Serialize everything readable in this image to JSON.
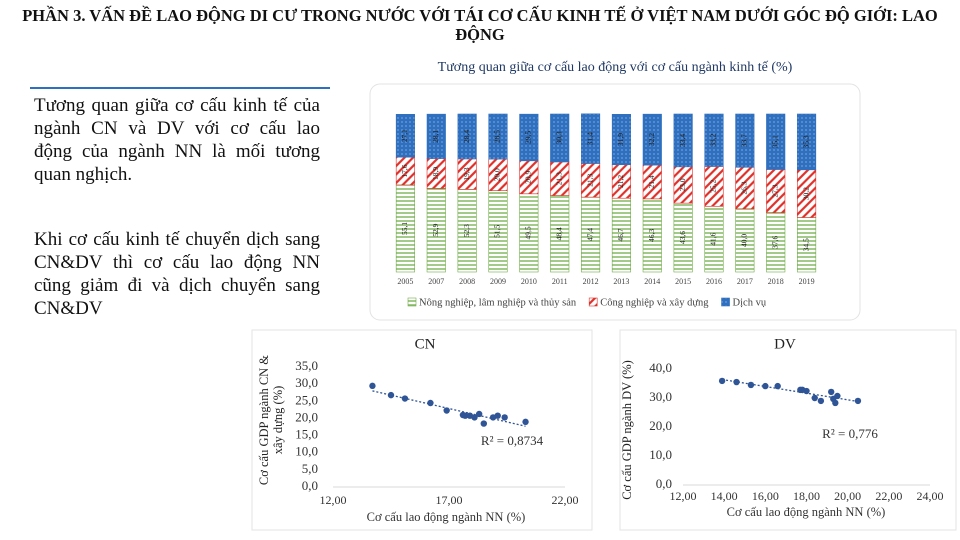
{
  "header": {
    "title": "PHẦN 3. VẤN ĐỀ LAO ĐỘNG DI CƯ TRONG NƯỚC VỚI TÁI CƠ CẤU KINH TẾ Ở VIỆT NAM DƯỚI GÓC ĐỘ GIỚI: LAO ĐỘNG"
  },
  "text": {
    "paragraphs": [
      "Tương quan giữa cơ cấu kinh tế của ngành CN và DV với cơ cấu lao động của ngành NN là mối tương quan nghịch.",
      "Khi cơ cấu kinh tế chuyển dịch sang CN&DV thì cơ cấu lao động NN cũng giảm đi và dịch chuyển sang CN&DV"
    ]
  },
  "chart_data": [
    {
      "type": "bar",
      "stacked": true,
      "title": "Tương quan giữa cơ cấu lao động với cơ cấu ngành kinh tế (%)",
      "categories": [
        "2005",
        "2007",
        "2008",
        "2009",
        "2010",
        "2011",
        "2012",
        "2013",
        "2014",
        "2015",
        "2016",
        "2017",
        "2018",
        "2019"
      ],
      "ylim": [
        0,
        100
      ],
      "series": [
        {
          "name": "Nông nghiệp, lâm nghiệp và thủy sản",
          "color": "#70ad47",
          "hatch": "horizontal",
          "values": [
            55.1,
            52.9,
            52.3,
            51.5,
            49.5,
            48.4,
            47.4,
            46.7,
            46.3,
            43.6,
            41.6,
            40.0,
            37.6,
            34.5
          ],
          "value_labels": [
            "55,1",
            "52,9",
            "52,3",
            "51,5",
            "49,5",
            "48,4",
            "47,4",
            "46,7",
            "46,3",
            "43,6",
            "41,6",
            "40,0",
            "37,6",
            "34,5"
          ]
        },
        {
          "name": "Công nghiệp và xây dựng",
          "color": "#e0302a",
          "hatch": "diagonal",
          "values": [
            17.6,
            18.9,
            19.3,
            20.0,
            20.9,
            21.3,
            21.3,
            21.2,
            21.4,
            23.0,
            25.2,
            26.3,
            27.3,
            30.2
          ],
          "value_labels": [
            "17,6",
            "18,9",
            "19,3",
            "20,0",
            "20,9",
            "21,3",
            "21,3",
            "21,2",
            "21,4",
            "23,0",
            "25,2",
            "26,3",
            "27,3",
            "30,2"
          ]
        },
        {
          "name": "Dịch vụ",
          "color": "#2e6fbf",
          "hatch": "dots",
          "values": [
            27.1,
            28.1,
            28.4,
            28.5,
            29.5,
            30.3,
            31.4,
            31.9,
            32.2,
            33.4,
            33.2,
            33.7,
            35.1,
            35.3
          ],
          "value_labels": [
            "27,1",
            "28,1",
            "28,4",
            "28,5",
            "29,5",
            "30,3",
            "31,4",
            "31,9",
            "32,2",
            "33,4",
            "33,2",
            "33,7",
            "35,1",
            "35,3"
          ]
        }
      ]
    },
    {
      "type": "scatter",
      "title": "CN",
      "xlabel": "Cơ cấu lao động ngành NN (%)",
      "ylabel": "Cơ cấu GDP ngành CN & xây dựng (%)",
      "annotation": "R² = 0,8734",
      "color": "#2f5597",
      "trendline": true,
      "x": [
        13.7,
        14.5,
        15.1,
        16.2,
        16.9,
        17.6,
        17.7,
        17.9,
        18.1,
        18.3,
        18.5,
        18.9,
        19.1,
        19.4,
        20.3
      ],
      "values": [
        29.5,
        26.8,
        25.8,
        24.5,
        22.3,
        21.0,
        20.8,
        20.8,
        20.3,
        21.3,
        18.5,
        20.3,
        20.8,
        20.3,
        19.0
      ],
      "xlim": [
        12,
        22
      ],
      "xticks": [
        {
          "value": 12,
          "label": "12,00"
        },
        {
          "value": 17,
          "label": "17,00"
        },
        {
          "value": 22,
          "label": "22,00"
        }
      ],
      "ylim": [
        0,
        35
      ],
      "yticks": [
        {
          "value": 0,
          "label": "0,0"
        },
        {
          "value": 5,
          "label": "5,0"
        },
        {
          "value": 10,
          "label": "10,0"
        },
        {
          "value": 15,
          "label": "15,0"
        },
        {
          "value": 20,
          "label": "20,0"
        },
        {
          "value": 25,
          "label": "25,0"
        },
        {
          "value": 30,
          "label": "30,0"
        },
        {
          "value": 35,
          "label": "35,0"
        }
      ]
    },
    {
      "type": "scatter",
      "title": "DV",
      "xlabel": "Cơ cấu lao động ngành NN (%)",
      "ylabel": "Cơ cấu GDP ngành DV (%)",
      "annotation": "R² = 0,776",
      "color": "#2f5597",
      "trendline": true,
      "x": [
        13.9,
        14.6,
        15.3,
        16.0,
        16.6,
        17.7,
        17.8,
        18.0,
        18.4,
        18.7,
        19.2,
        19.3,
        19.5,
        19.4,
        20.5
      ],
      "values": [
        35.9,
        35.5,
        34.5,
        34.1,
        34.1,
        32.8,
        32.8,
        32.4,
        30.0,
        29.0,
        32.1,
        29.7,
        30.7,
        28.3,
        29.0
      ],
      "xlim": [
        12,
        24
      ],
      "xticks": [
        {
          "value": 12,
          "label": "12,00"
        },
        {
          "value": 14,
          "label": "14,00"
        },
        {
          "value": 16,
          "label": "16,00"
        },
        {
          "value": 18,
          "label": "18,00"
        },
        {
          "value": 20,
          "label": "20,00"
        },
        {
          "value": 22,
          "label": "22,00"
        },
        {
          "value": 24,
          "label": "24,00"
        }
      ],
      "ylim": [
        0,
        40
      ],
      "yticks": [
        {
          "value": 0,
          "label": "0,0"
        },
        {
          "value": 10,
          "label": "10,0"
        },
        {
          "value": 20,
          "label": "20,0"
        },
        {
          "value": 30,
          "label": "30,0"
        },
        {
          "value": 40,
          "label": "40,0"
        }
      ]
    }
  ]
}
